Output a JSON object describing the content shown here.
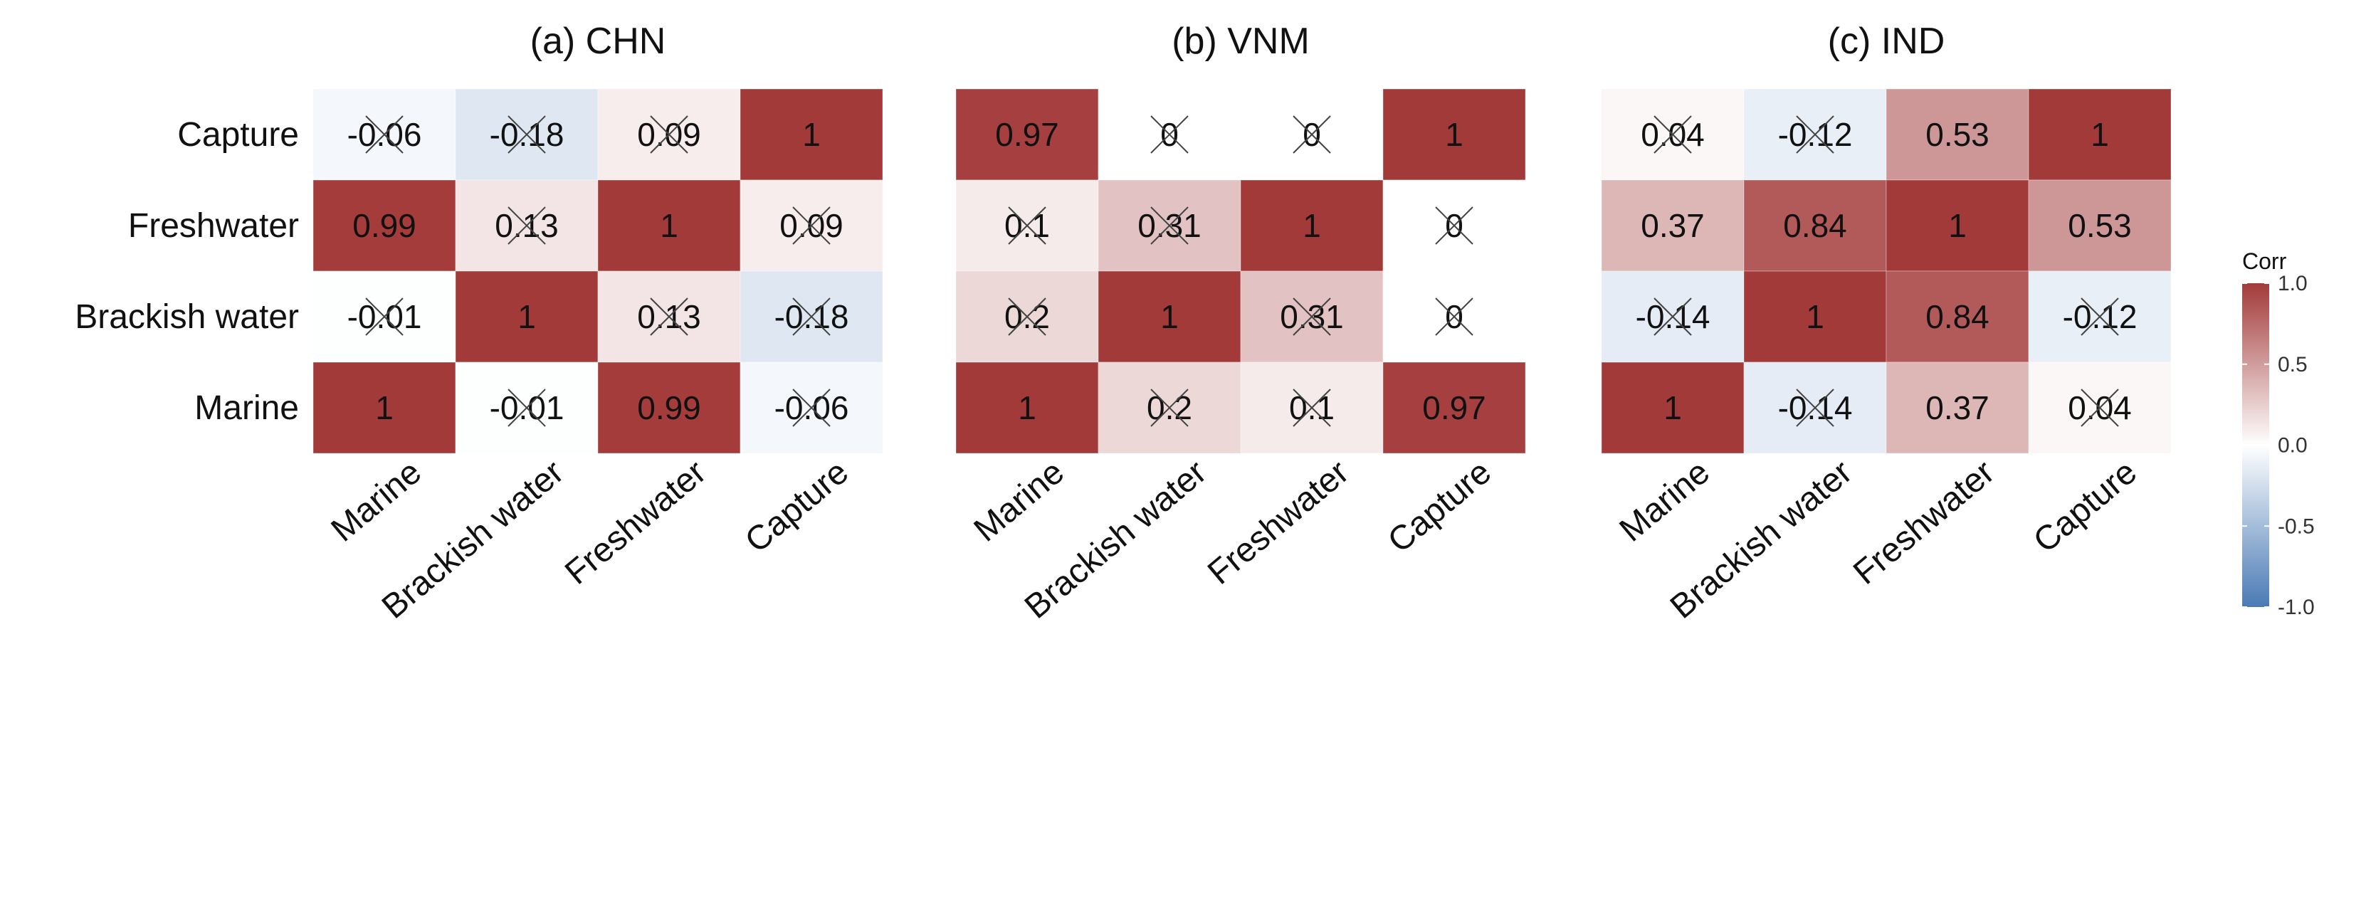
{
  "chart_data": {
    "type": "heatmap",
    "variables": [
      "Marine",
      "Brackish water",
      "Freshwater",
      "Capture"
    ],
    "x_categories": [
      "Marine",
      "Brackish water",
      "Freshwater",
      "Capture"
    ],
    "y_categories_top_to_bottom": [
      "Capture",
      "Freshwater",
      "Brackish water",
      "Marine"
    ],
    "color_scale": {
      "low": "#4a7ab5",
      "mid": "#ffffff",
      "high": "#a33a3a",
      "range": [
        -1.0,
        1.0
      ]
    },
    "legend": {
      "title": "Corr",
      "ticks": [
        "1.0",
        "0.5",
        "0.0",
        "-0.5",
        "-1.0"
      ],
      "tick_values": [
        1.0,
        0.5,
        0.0,
        -0.5,
        -1.0
      ],
      "placement": "right"
    },
    "panels": [
      {
        "title": "(a) CHN",
        "matrix": [
          [
            1,
            -0.01,
            0.99,
            -0.06
          ],
          [
            -0.01,
            1,
            0.13,
            -0.18
          ],
          [
            0.99,
            0.13,
            1,
            0.09
          ],
          [
            -0.06,
            -0.18,
            0.09,
            1
          ]
        ],
        "labels": [
          [
            "1",
            "-0.01",
            "0.99",
            "-0.06"
          ],
          [
            "-0.01",
            "1",
            "0.13",
            "-0.18"
          ],
          [
            "0.99",
            "0.13",
            "1",
            "0.09"
          ],
          [
            "-0.06",
            "-0.18",
            "0.09",
            "1"
          ]
        ],
        "crossed": [
          [
            false,
            true,
            false,
            true
          ],
          [
            true,
            false,
            true,
            true
          ],
          [
            false,
            true,
            false,
            true
          ],
          [
            true,
            true,
            true,
            false
          ]
        ]
      },
      {
        "title": "(b) VNM",
        "matrix": [
          [
            1,
            0.2,
            0.1,
            0.97
          ],
          [
            0.2,
            1,
            0.31,
            0
          ],
          [
            0.1,
            0.31,
            1,
            0
          ],
          [
            0.97,
            0,
            0,
            1
          ]
        ],
        "labels": [
          [
            "1",
            "0.2",
            "0.1",
            "0.97"
          ],
          [
            "0.2",
            "1",
            "0.31",
            "0"
          ],
          [
            "0.1",
            "0.31",
            "1",
            "0"
          ],
          [
            "0.97",
            "0",
            "0",
            "1"
          ]
        ],
        "crossed": [
          [
            false,
            true,
            true,
            false
          ],
          [
            true,
            false,
            true,
            true
          ],
          [
            true,
            true,
            false,
            true
          ],
          [
            false,
            true,
            true,
            false
          ]
        ]
      },
      {
        "title": "(c) IND",
        "matrix": [
          [
            1,
            -0.14,
            0.37,
            0.04
          ],
          [
            -0.14,
            1,
            0.84,
            -0.12
          ],
          [
            0.37,
            0.84,
            1,
            0.53
          ],
          [
            0.04,
            -0.12,
            0.53,
            1
          ]
        ],
        "labels": [
          [
            "1",
            "-0.14",
            "0.37",
            "0.04"
          ],
          [
            "-0.14",
            "1",
            "0.84",
            "-0.12"
          ],
          [
            "0.37",
            "0.84",
            "1",
            "0.53"
          ],
          [
            "0.04",
            "-0.12",
            "0.53",
            "1"
          ]
        ],
        "crossed": [
          [
            false,
            true,
            false,
            true
          ],
          [
            true,
            false,
            false,
            true
          ],
          [
            false,
            false,
            false,
            false
          ],
          [
            true,
            true,
            false,
            false
          ]
        ]
      }
    ]
  }
}
